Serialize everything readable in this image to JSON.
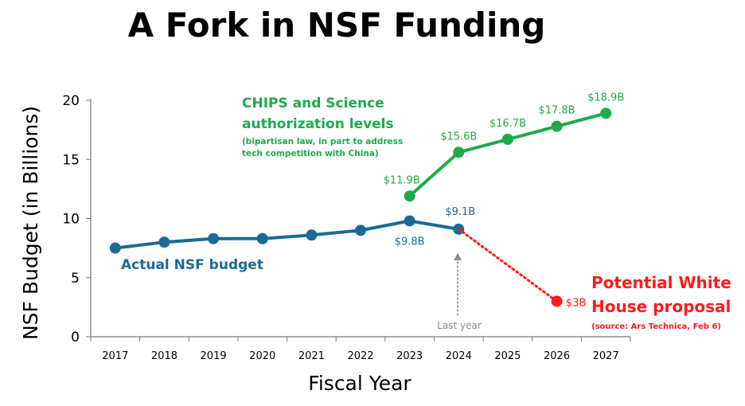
{
  "chart_data": {
    "type": "line",
    "title": "A Fork in NSF Funding",
    "xlabel": "Fiscal Year",
    "ylabel": "NSF Budget (in Billions)",
    "ylim": [
      0,
      20
    ],
    "yticks": [
      0,
      5,
      10,
      15,
      20
    ],
    "categories": [
      "2017",
      "2018",
      "2019",
      "2020",
      "2021",
      "2022",
      "2023",
      "2024",
      "2025",
      "2026",
      "2027"
    ],
    "grid": false,
    "colors": {
      "actual": "#1a6b94",
      "chips": "#1faa4b",
      "proposal": "#ff1a1a",
      "annotation": "#8a8a8a"
    },
    "series": [
      {
        "name": "Actual NSF budget",
        "x": [
          "2017",
          "2018",
          "2019",
          "2020",
          "2021",
          "2022",
          "2023",
          "2024"
        ],
        "values": [
          7.5,
          8.0,
          8.3,
          8.3,
          8.6,
          9.0,
          9.8,
          9.1
        ],
        "labels": {
          "2023": "$9.8B",
          "2024": "$9.1B"
        }
      },
      {
        "name": "CHIPS and Science authorization levels",
        "x": [
          "2023",
          "2024",
          "2025",
          "2026",
          "2027"
        ],
        "values": [
          11.9,
          15.6,
          16.7,
          17.8,
          18.9
        ],
        "labels": {
          "2023": "$11.9B",
          "2024": "$15.6B",
          "2025": "$16.7B",
          "2026": "$17.8B",
          "2027": "$18.9B"
        }
      },
      {
        "name": "Potential White House proposal",
        "x": [
          "2024",
          "2026"
        ],
        "values": [
          9.1,
          3.0
        ],
        "style": "dotted",
        "labels": {
          "2026": "$3B"
        }
      }
    ],
    "annotations": {
      "actual": "Actual NSF budget",
      "chips_title_1": "CHIPS and Science",
      "chips_title_2": "authorization levels",
      "chips_note_1": "(bipartisan law, in part to address",
      "chips_note_2": "tech competition with China)",
      "proposal_1": "Potential White",
      "proposal_2": "House proposal",
      "proposal_source": "(source: Ars Technica, Feb 6)",
      "last_year": "Last year"
    }
  }
}
